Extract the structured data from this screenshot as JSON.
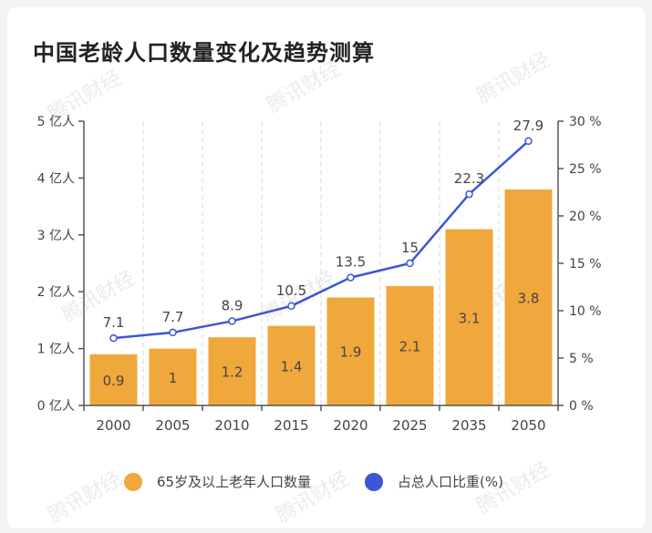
{
  "title": "中国老龄人口数量变化及趋势测算",
  "watermark": "腾讯财经",
  "colors": {
    "bar": "#f0a73c",
    "line": "#3d55d6",
    "axis": "#555555",
    "grid": "#d9d9d9",
    "label": "#444444"
  },
  "legend": {
    "bar_label": "65岁及以上老年人口数量",
    "line_label": "占总人口比重(%)"
  },
  "chart_data": {
    "type": "bar",
    "categories": [
      "2000",
      "2005",
      "2010",
      "2015",
      "2020",
      "2025",
      "2035",
      "2050"
    ],
    "series": [
      {
        "name": "65岁及以上老年人口数量",
        "type": "bar",
        "axis": "left",
        "values": [
          0.9,
          1,
          1.2,
          1.4,
          1.9,
          2.1,
          3.1,
          3.8
        ],
        "labels": [
          "0.9",
          "1",
          "1.2",
          "1.4",
          "1.9",
          "2.1",
          "3.1",
          "3.8"
        ]
      },
      {
        "name": "占总人口比重(%)",
        "type": "line",
        "axis": "right",
        "values": [
          7.1,
          7.7,
          8.9,
          10.5,
          13.5,
          15,
          22.3,
          27.9
        ],
        "labels": [
          "7.1",
          "7.7",
          "8.9",
          "10.5",
          "13.5",
          "15",
          "22.3",
          "27.9"
        ]
      }
    ],
    "left_axis": {
      "ticks": [
        "0 亿人",
        "1 亿人",
        "2 亿人",
        "3 亿人",
        "4 亿人",
        "5 亿人"
      ],
      "ylim": [
        0,
        5
      ]
    },
    "right_axis": {
      "ticks": [
        "0 %",
        "5 %",
        "10 %",
        "15 %",
        "20 %",
        "25 %",
        "30 %"
      ],
      "ylim": [
        0,
        30
      ]
    },
    "grid": "vertical dashed",
    "legend_position": "bottom"
  }
}
